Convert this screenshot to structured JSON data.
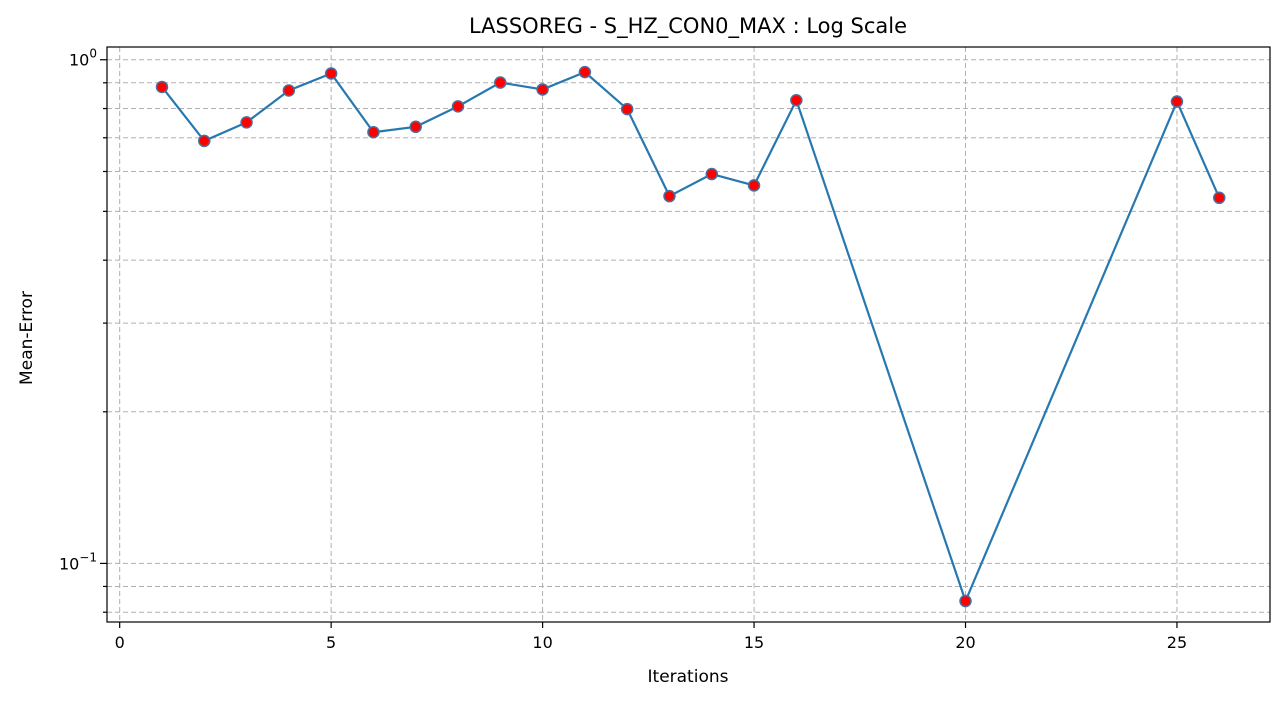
{
  "chart_data": {
    "type": "line",
    "title": "LASSOREG - S_HZ_CON0_MAX : Log Scale",
    "xlabel": "Iterations",
    "ylabel": "Mean-Error",
    "x_scale": "linear",
    "y_scale": "log",
    "xlim": [
      -0.3,
      27.2
    ],
    "ylim": [
      0.0765,
      1.06
    ],
    "grid": true,
    "x_ticks": [
      0,
      5,
      10,
      15,
      20,
      25
    ],
    "x_tick_labels": [
      "0",
      "5",
      "10",
      "15",
      "20",
      "25"
    ],
    "y_major_ticks": [
      {
        "value": 1.0,
        "base": "10",
        "exponent": "0"
      },
      {
        "value": 0.1,
        "base": "10",
        "exponent": "−1"
      }
    ],
    "y_minor_ticks": [
      0.08,
      0.09,
      0.2,
      0.3,
      0.4,
      0.5,
      0.6,
      0.7,
      0.8,
      0.9
    ],
    "series": [
      {
        "line_color": "#2878b0",
        "marker_face": "#ff0000",
        "marker_edge": "#4a6fa0",
        "x": [
          1,
          2,
          3,
          4,
          5,
          6,
          7,
          8,
          9,
          10,
          11,
          12,
          13,
          14,
          15,
          16,
          20,
          25,
          26
        ],
        "y": [
          0.883,
          0.69,
          0.751,
          0.869,
          0.939,
          0.718,
          0.736,
          0.808,
          0.901,
          0.873,
          0.945,
          0.798,
          0.536,
          0.593,
          0.563,
          0.831,
          0.0842,
          0.826,
          0.532
        ]
      }
    ]
  }
}
